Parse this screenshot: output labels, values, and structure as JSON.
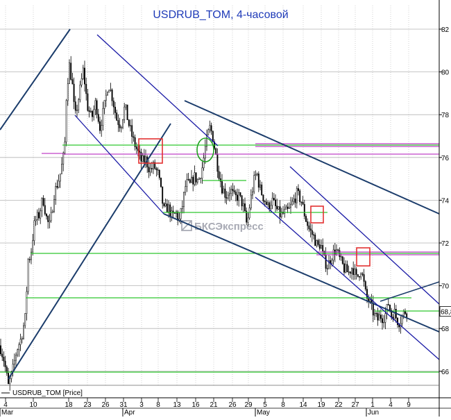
{
  "chart_data": {
    "type": "candlestick",
    "title": "USDRUB_TOM, 4-часовой",
    "legend": {
      "label": "USDRUB_TOM [Price]",
      "position": "bottom-left"
    },
    "watermark": "БКСЭкспресс",
    "y_axis": {
      "position": "right",
      "ticks": [
        66,
        68,
        70,
        72,
        74,
        76,
        78,
        80,
        82
      ],
      "ylim": [
        64.7,
        83.2
      ]
    },
    "last_value_label": "68,8",
    "x_axis": {
      "day_ticks": [
        "4",
        "10",
        "18",
        "23",
        "26",
        "31",
        "3",
        "8",
        "13",
        "16",
        "21",
        "26",
        "29",
        "5",
        "8",
        "14",
        "19",
        "22",
        "27",
        "1",
        "4",
        "9"
      ],
      "month_labels": [
        "Mar",
        "Apr",
        "May",
        "Jun"
      ]
    },
    "grid": true,
    "colors": {
      "background": "#ffffff",
      "title": "#1e3ab8",
      "grid": "#b3b3b3",
      "axis": "#000000",
      "candle": "#000000",
      "channel_dark": "#1b3c6b",
      "channel_blue": "#1a1aa6",
      "support_green": "#2ec82e",
      "resistance_magenta": "#c040c8",
      "highlight_red": "#e23030",
      "highlight_green": "#20a020",
      "watermark": "#a8aab4"
    }
  }
}
